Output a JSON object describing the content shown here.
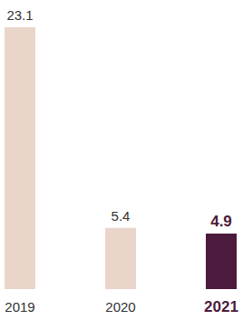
{
  "chart_data": {
    "type": "bar",
    "categories": [
      "2019",
      "2020",
      "2021"
    ],
    "values": [
      23.1,
      5.4,
      4.9
    ],
    "colors": [
      "#ead5cb",
      "#ead5cb",
      "#4b1a3c"
    ],
    "ylim": [
      0,
      23.1
    ],
    "data_labels": true,
    "tick_labels": "x",
    "grid": false
  }
}
